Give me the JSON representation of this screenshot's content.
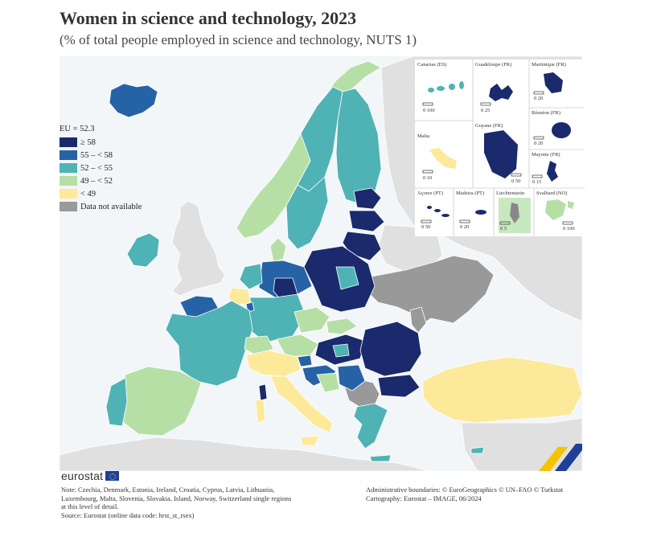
{
  "title": "Women in science and technology, 2023",
  "subtitle": "(% of total people employed in science and technology, NUTS 1)",
  "legend": {
    "eu_label": "EU = 52.3",
    "classes": [
      {
        "label": "≥ 58",
        "color": "#1a2a6c"
      },
      {
        "label": "55 – < 58",
        "color": "#2662a6"
      },
      {
        "label": "52 – < 55",
        "color": "#4fb3b5"
      },
      {
        "label": "49 – < 52",
        "color": "#b6dfa6"
      },
      {
        "label": "< 49",
        "color": "#fde99a"
      },
      {
        "label": "Data not available",
        "color": "#9a9a9a"
      }
    ]
  },
  "insets": [
    {
      "name": "Canarias (ES)",
      "scale": "0   100"
    },
    {
      "name": "Guadeloupe (FR)",
      "scale": "0   25"
    },
    {
      "name": "Martinique (FR)",
      "scale": "0   20"
    },
    {
      "name": "Réunion (FR)",
      "scale": "0   20"
    },
    {
      "name": "Malta",
      "scale": "0   10"
    },
    {
      "name": "Guyane (FR)",
      "scale": "0   50"
    },
    {
      "name": "Mayotte (FR)",
      "scale": "0   15"
    },
    {
      "name": "Açores (PT)",
      "scale": "0   50"
    },
    {
      "name": "Madeira (PT)",
      "scale": "0   20"
    },
    {
      "name": "Liechtenstein",
      "scale": "0   5"
    },
    {
      "name": "Svalbard (NO)",
      "scale": "0 100"
    }
  ],
  "logo": "eurostat",
  "note": [
    "Note: Czechia, Denmark, Estonia, Ireland, Croatia, Cyprus, Latvia, Lithuania,",
    "Luxembourg, Malta, Slovenia, Slovakia, Island, Norway, Switzerland single regions",
    "at this level of detail.",
    "Source: Eurostat (online data code: hrst_st_rsex)"
  ],
  "credits": [
    "Administrative boundaries: © EuroGeographics © UN–FAO © Turkstat",
    "Cartography: Eurostat – IMAGE, 06/2024"
  ],
  "colors": {
    "non_eu_land": "#e0e0e0",
    "sea": "#f2f6f8",
    "borders": "#ffffff"
  }
}
